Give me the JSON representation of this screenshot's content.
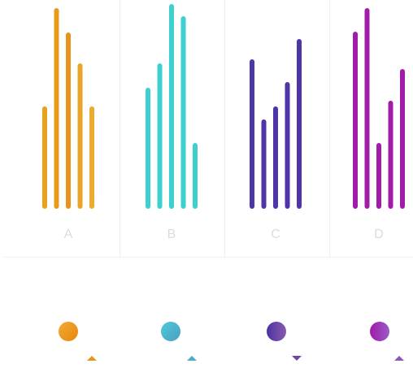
{
  "chart_data": {
    "type": "bar",
    "categories": [
      "A",
      "B",
      "C",
      "D"
    ],
    "series": [
      {
        "color": "#e6a320",
        "values": [
          126,
          149,
          184,
          218
        ]
      },
      {
        "color": "#e89a1a",
        "values": [
          247,
          179,
          110,
          247
        ]
      },
      {
        "color": "#e8941c",
        "values": [
          217,
          252,
          126,
          81
        ]
      },
      {
        "color": "#e9a52a",
        "values": [
          179,
          237,
          156,
          133
        ]
      },
      {
        "color": "#ebac2e",
        "values": [
          126,
          81,
          209,
          172
        ]
      }
    ],
    "group_colors": [
      "#e6a320",
      "#3ecfcf",
      "#4f36a8",
      "#a11ca9"
    ],
    "ylim": [
      0,
      250
    ]
  }
}
